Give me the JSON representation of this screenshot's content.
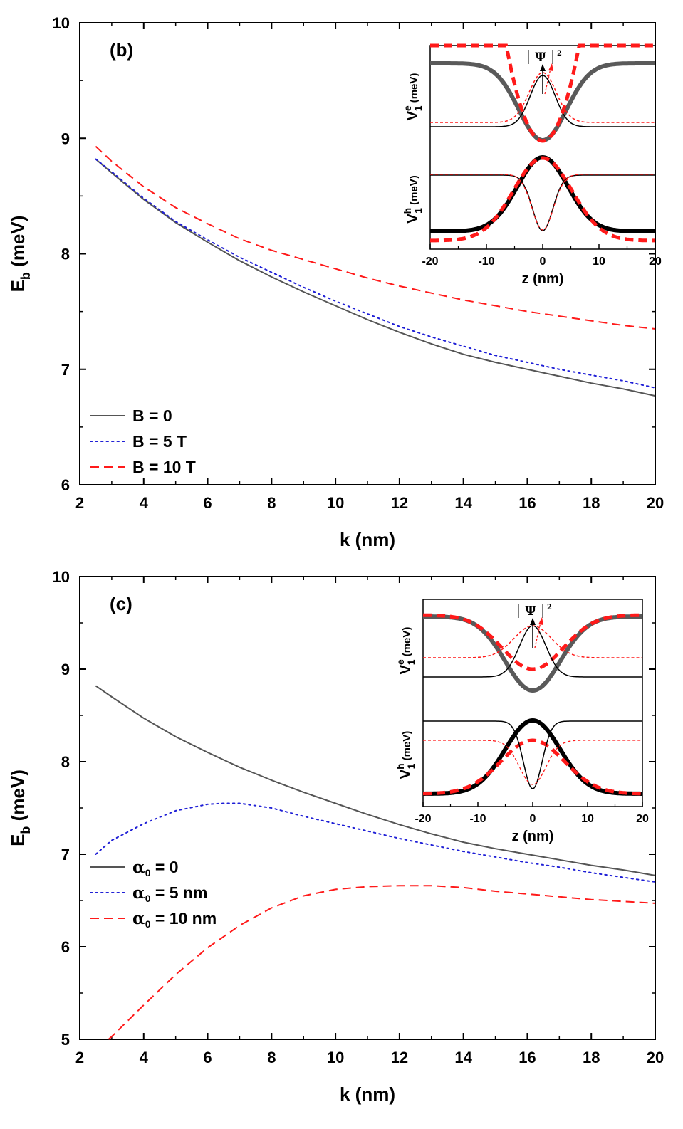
{
  "chart_data": [
    {
      "id": "b",
      "type": "line",
      "panel_label": "(b)",
      "xlabel": "k (nm)",
      "ylabel": {
        "main": "E",
        "sub": "b",
        "unit": " (meV)"
      },
      "xlim": [
        2,
        20
      ],
      "ylim": [
        6,
        10
      ],
      "xticks": [
        2,
        4,
        6,
        8,
        10,
        12,
        14,
        16,
        18,
        20
      ],
      "yticks": [
        6,
        7,
        8,
        9,
        10
      ],
      "series": [
        {
          "name": "B = 0",
          "label": {
            "sym": "",
            "sub": "",
            "text": "B = 0"
          },
          "color": "#555555",
          "style": "solid",
          "x": [
            2.5,
            3,
            4,
            5,
            6,
            7,
            8,
            9,
            10,
            11,
            12,
            13,
            14,
            15,
            16,
            17,
            18,
            19,
            20
          ],
          "y": [
            8.82,
            8.7,
            8.47,
            8.27,
            8.1,
            7.94,
            7.8,
            7.67,
            7.55,
            7.43,
            7.32,
            7.22,
            7.13,
            7.06,
            7.0,
            6.94,
            6.88,
            6.83,
            6.77
          ]
        },
        {
          "name": "B = 5 T",
          "label": {
            "sym": "",
            "sub": "",
            "text": "B = 5 T"
          },
          "color": "#1f1fd6",
          "style": "dotted",
          "x": [
            2.5,
            3,
            4,
            5,
            6,
            7,
            8,
            9,
            10,
            11,
            12,
            13,
            14,
            15,
            16,
            17,
            18,
            19,
            20
          ],
          "y": [
            8.82,
            8.71,
            8.48,
            8.28,
            8.12,
            7.97,
            7.84,
            7.71,
            7.59,
            7.48,
            7.37,
            7.28,
            7.2,
            7.12,
            7.06,
            7.0,
            6.95,
            6.9,
            6.84
          ]
        },
        {
          "name": "B = 10 T",
          "label": {
            "sym": "",
            "sub": "",
            "text": "B = 10 T"
          },
          "color": "#ff1a1a",
          "style": "dashed",
          "x": [
            2.5,
            3,
            4,
            5,
            6,
            7,
            8,
            9,
            10,
            11,
            12,
            13,
            14,
            15,
            16,
            17,
            18,
            19,
            20
          ],
          "y": [
            8.93,
            8.8,
            8.58,
            8.4,
            8.26,
            8.13,
            8.03,
            7.95,
            7.87,
            7.79,
            7.72,
            7.66,
            7.6,
            7.55,
            7.5,
            7.46,
            7.42,
            7.38,
            7.35
          ]
        }
      ],
      "inset": {
        "xlabel": "z (nm)",
        "xlim": [
          -20,
          20
        ],
        "xticks": [
          -20,
          -10,
          0,
          10,
          20
        ],
        "ylabel_top": {
          "main": "V",
          "sup": "e",
          "sub": "1",
          "unit": " (meV)"
        },
        "ylabel_bottom": {
          "main": "V",
          "sup": "h",
          "sub": "1",
          "unit": " (meV)"
        },
        "annotation": {
          "psi": "Ψ",
          "power": "2"
        }
      }
    },
    {
      "id": "c",
      "type": "line",
      "panel_label": "(c)",
      "xlabel": "k (nm)",
      "ylabel": {
        "main": "E",
        "sub": "b",
        "unit": " (meV)"
      },
      "xlim": [
        2,
        20
      ],
      "ylim": [
        5,
        10
      ],
      "xticks": [
        2,
        4,
        6,
        8,
        10,
        12,
        14,
        16,
        18,
        20
      ],
      "yticks": [
        5,
        6,
        7,
        8,
        9,
        10
      ],
      "series": [
        {
          "name": "α0 = 0",
          "label": {
            "sym": "α",
            "sub": "0",
            "text": " = 0"
          },
          "color": "#555555",
          "style": "solid",
          "x": [
            2.5,
            3,
            4,
            5,
            6,
            7,
            8,
            9,
            10,
            11,
            12,
            13,
            14,
            15,
            16,
            17,
            18,
            19,
            20
          ],
          "y": [
            8.82,
            8.7,
            8.47,
            8.27,
            8.1,
            7.94,
            7.8,
            7.67,
            7.55,
            7.43,
            7.32,
            7.22,
            7.13,
            7.06,
            7.0,
            6.94,
            6.88,
            6.83,
            6.77
          ]
        },
        {
          "name": "α0 = 5 nm",
          "label": {
            "sym": "α",
            "sub": "0",
            "text": " = 5 nm"
          },
          "color": "#1f1fd6",
          "style": "dotted",
          "x": [
            2.5,
            3,
            4,
            5,
            6,
            6.5,
            7,
            8,
            9,
            10,
            11,
            12,
            13,
            14,
            15,
            16,
            17,
            18,
            19,
            20
          ],
          "y": [
            7.0,
            7.15,
            7.33,
            7.47,
            7.54,
            7.55,
            7.55,
            7.5,
            7.41,
            7.33,
            7.25,
            7.17,
            7.1,
            7.03,
            6.97,
            6.91,
            6.86,
            6.8,
            6.75,
            6.7
          ]
        },
        {
          "name": "α0 = 10 nm",
          "label": {
            "sym": "α",
            "sub": "0",
            "text": " = 10 nm"
          },
          "color": "#ff1a1a",
          "style": "dashed",
          "x": [
            2.9,
            3,
            4,
            5,
            6,
            7,
            8,
            9,
            10,
            11,
            12,
            13,
            14,
            15,
            16,
            17,
            18,
            19,
            20
          ],
          "y": [
            5.0,
            5.03,
            5.37,
            5.7,
            5.99,
            6.23,
            6.42,
            6.55,
            6.62,
            6.65,
            6.66,
            6.66,
            6.64,
            6.6,
            6.57,
            6.54,
            6.51,
            6.49,
            6.47
          ]
        }
      ],
      "inset": {
        "xlabel": "z (nm)",
        "xlim": [
          -20,
          20
        ],
        "xticks": [
          -20,
          -10,
          0,
          10,
          20
        ],
        "ylabel_top": {
          "main": "V",
          "sup": "e",
          "sub": "1",
          "unit": " (meV)"
        },
        "ylabel_bottom": {
          "main": "V",
          "sup": "h",
          "sub": "1",
          "unit": " (meV)"
        },
        "annotation": {
          "psi": "Ψ",
          "power": "2"
        }
      }
    }
  ]
}
